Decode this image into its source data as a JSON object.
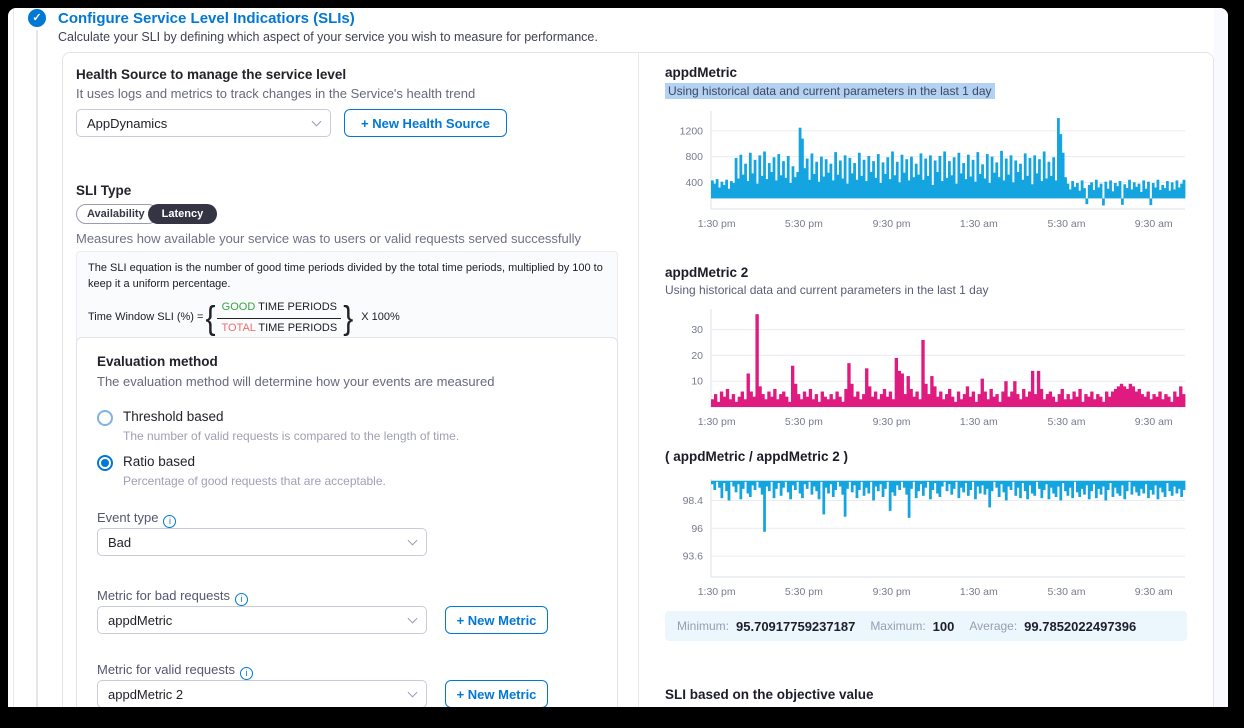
{
  "header": {
    "title": "Configure Service Level Indicatiors (SLIs)",
    "subtitle": "Calculate your SLI by defining which aspect of your service you wish to measure for performance.",
    "check_glyph": "✓"
  },
  "left": {
    "health_source": {
      "label": "Health Source to manage the service level",
      "desc": "It uses logs and metrics to track changes in the Service's health trend",
      "value": "AppDynamics",
      "new_button": "+ New Health Source"
    },
    "sli_type": {
      "label": "SLI Type",
      "tabs": [
        {
          "label": "Availability"
        },
        {
          "label": "Latency"
        }
      ],
      "selected": "Latency",
      "desc": "Measures how available your service was to users or valid requests served successfully"
    },
    "equation": {
      "line1": "The SLI equation is the number of good time periods divided by the total time periods, multiplied by 100 to keep it a uniform percentage.",
      "prefix": "Time Window SLI (%) =",
      "numerator_em": "GOOD",
      "numerator_rest": " TIME PERIODS",
      "denominator_em": "TOTAL",
      "denominator_rest": " TIME PERIODS",
      "suffix": "X 100%"
    },
    "evaluation": {
      "title": "Evaluation method",
      "desc": "The evaluation method will determine how your events are measured",
      "options": [
        {
          "label": "Threshold based",
          "desc": "The number of valid requests is compared to the length of time.",
          "selected": false
        },
        {
          "label": "Ratio based",
          "desc": "Percentage of good requests that are acceptable.",
          "selected": true
        }
      ],
      "event_type": {
        "label": "Event type",
        "value": "Bad"
      },
      "metric_bad": {
        "label": "Metric for bad requests",
        "value": "appdMetric",
        "button": "+ New Metric"
      },
      "metric_valid": {
        "label": "Metric for valid requests",
        "value": "appdMetric 2",
        "button": "+ New Metric"
      },
      "info_glyph": "i"
    }
  },
  "right": {
    "stats": {
      "min_label": "Minimum:",
      "min": "95.70917759237187",
      "max_label": "Maximum:",
      "max": "100",
      "avg_label": "Average:",
      "avg": "99.7852022497396"
    },
    "footer": "SLI based on the objective value"
  },
  "chart_data": [
    {
      "type": "area",
      "title": "appdMetric",
      "subtitle": "Using historical data and current parameters in the last 1 day",
      "subtitle_highlighted": true,
      "color": "#14a5e0",
      "ylim": [
        -15,
        1510
      ],
      "yticks": [
        400,
        800,
        1200
      ],
      "xlabels": [
        "1:30 pm",
        "5:30 pm",
        "9:30 pm",
        "1:30 am",
        "5:30 am",
        "9:30 am"
      ],
      "baseline": 150,
      "values": [
        430,
        380,
        450,
        320,
        410,
        360,
        440,
        300,
        420,
        390,
        780,
        460,
        830,
        520,
        690,
        420,
        860,
        540,
        750,
        380,
        820,
        500,
        880,
        450,
        700,
        560,
        790,
        430,
        840,
        510,
        730,
        470,
        810,
        390,
        650,
        480,
        560,
        1250,
        1080,
        620,
        770,
        440,
        850,
        530,
        720,
        410,
        800,
        490,
        760,
        550,
        690,
        430,
        870,
        520,
        740,
        460,
        820,
        380,
        780,
        540,
        700,
        440,
        860,
        500,
        750,
        420,
        810,
        560,
        730,
        470,
        840,
        390,
        710,
        530,
        790,
        450,
        880,
        510,
        720,
        400,
        830,
        550,
        760,
        430,
        800,
        480,
        690,
        520,
        850,
        440,
        770,
        500,
        820,
        360,
        740,
        560,
        810,
        420,
        880,
        470,
        730,
        510,
        790,
        380,
        860,
        540,
        700,
        450,
        830,
        490,
        750,
        410,
        870,
        530,
        680,
        460,
        840,
        390,
        800,
        550,
        710,
        480,
        890,
        430,
        770,
        520,
        820,
        400,
        740,
        560,
        690,
        440,
        850,
        500,
        780,
        370,
        820,
        540,
        760,
        420,
        880,
        460,
        720,
        500,
        790,
        430,
        1400,
        1150,
        860,
        480,
        380,
        290,
        420,
        330,
        390,
        270,
        430,
        310,
        60,
        360,
        400,
        280,
        440,
        320,
        380,
        40,
        410,
        300,
        430,
        260,
        390,
        340,
        420,
        50,
        370,
        310,
        440,
        290,
        400,
        330,
        380,
        250,
        430,
        300,
        410,
        45,
        390,
        320,
        440,
        280,
        360,
        310,
        420,
        270,
        400,
        290,
        430,
        320,
        380,
        440
      ]
    },
    {
      "type": "area",
      "title": "appdMetric 2",
      "subtitle": "Using historical data and current parameters in the last 1 day",
      "subtitle_highlighted": false,
      "color": "#e01b80",
      "ylim": [
        0,
        38
      ],
      "yticks": [
        10,
        20,
        30
      ],
      "xlabels": [
        "1:30 pm",
        "5:30 pm",
        "9:30 pm",
        "1:30 am",
        "5:30 am",
        "9:30 am"
      ],
      "baseline": 0,
      "values": [
        3,
        5,
        2,
        6,
        4,
        7,
        3,
        5,
        2,
        4,
        6,
        3,
        13,
        6,
        4,
        36,
        8,
        5,
        3,
        6,
        4,
        7,
        3,
        5,
        6,
        4,
        2,
        16,
        9,
        5,
        3,
        6,
        4,
        7,
        3,
        5,
        2,
        6,
        4,
        3,
        5,
        3,
        6,
        4,
        2,
        7,
        17,
        9,
        4,
        6,
        3,
        5,
        15,
        8,
        4,
        6,
        3,
        5,
        7,
        4,
        6,
        3,
        19,
        14,
        13,
        5,
        12,
        7,
        4,
        6,
        3,
        26,
        9,
        5,
        12,
        8,
        4,
        6,
        3,
        5,
        7,
        4,
        2,
        6,
        3,
        5,
        8,
        4,
        6,
        2,
        5,
        11,
        6,
        3,
        7,
        4,
        5,
        2,
        6,
        10,
        4,
        6,
        10,
        5,
        3,
        7,
        4,
        6,
        14,
        5,
        14,
        7,
        3,
        5,
        6,
        4,
        2,
        5,
        7,
        3,
        5,
        3,
        6,
        4,
        7,
        2,
        5,
        4,
        6,
        3,
        5,
        4,
        2,
        6,
        4,
        6,
        7,
        8,
        9,
        8,
        7,
        9,
        8,
        6,
        7,
        5,
        4,
        6,
        3,
        5,
        4,
        6,
        3,
        5,
        4,
        2,
        6,
        4,
        8,
        5
      ]
    },
    {
      "type": "area",
      "title": "( appdMetric / appdMetric 2 )",
      "subtitle": "",
      "subtitle_highlighted": false,
      "color": "#14a5e0",
      "ylim": [
        91.8,
        100.25
      ],
      "yticks": [
        93.6,
        96,
        98.4
      ],
      "xlabels": [
        "1:30 pm",
        "5:30 pm",
        "9:30 pm",
        "1:30 am",
        "5:30 am",
        "9:30 am"
      ],
      "baseline": 100.1,
      "values": [
        99.8,
        99.3,
        100,
        99.5,
        98.6,
        99.9,
        99.2,
        98.4,
        100,
        99.6,
        99.1,
        99.8,
        98.5,
        99.4,
        100,
        99.0,
        98.7,
        99.7,
        99.3,
        100,
        99.5,
        98.9,
        95.7,
        99.6,
        99.2,
        100,
        98.6,
        99.4,
        99.9,
        98.8,
        99.5,
        100,
        99.1,
        98.5,
        99.7,
        99.3,
        100,
        99.0,
        98.6,
        99.8,
        99.4,
        100,
        98.9,
        99.6,
        99.2,
        98.5,
        100,
        97.2,
        99.5,
        99.0,
        99.8,
        98.7,
        99.3,
        100,
        99.6,
        98.9,
        97.0,
        99.4,
        100,
        99.1,
        99.7,
        98.6,
        99.3,
        100,
        98.8,
        99.5,
        99.0,
        100,
        98.4,
        99.6,
        99.2,
        99.8,
        98.7,
        99.4,
        100,
        97.5,
        99.1,
        98.8,
        99.7,
        99.3,
        100,
        99.5,
        98.9,
        96.9,
        99.4,
        100,
        98.6,
        99.2,
        99.8,
        98.8,
        99.5,
        100,
        98.5,
        99.3,
        99.9,
        99.0,
        98.7,
        99.6,
        100,
        99.2,
        99.8,
        98.9,
        99.4,
        100,
        98.6,
        99.5,
        99.1,
        99.9,
        98.8,
        99.3,
        100,
        98.5,
        99.6,
        99.0,
        99.7,
        98.9,
        99.4,
        97.8,
        99.2,
        100,
        99.5,
        98.7,
        99.8,
        99.1,
        98.4,
        99.6,
        99.3,
        100,
        98.8,
        99.5,
        98.6,
        99.9,
        99.2,
        98.5,
        99.7,
        99.0,
        98.8,
        100,
        99.4,
        98.6,
        99.3,
        99.8,
        98.5,
        99.5,
        99.0,
        98.7,
        99.6,
        98.4,
        99.9,
        99.2,
        98.8,
        99.5,
        98.6,
        100,
        99.1,
        98.7,
        99.4,
        98.9,
        99.7,
        98.5,
        99.2,
        99.8,
        98.6,
        99.4,
        98.9,
        99.6,
        98.4,
        99.3,
        99.9,
        98.7,
        99.5,
        99.0,
        98.8,
        99.7,
        98.5,
        99.2,
        100,
        98.9,
        99.6,
        99.1,
        98.8,
        99.4,
        99.0,
        99.8,
        98.6,
        99.3,
        98.9,
        99.7,
        98.5,
        99.5,
        99.1,
        98.7,
        99.9,
        99.2,
        98.8,
        99.6,
        99.0,
        99.4,
        98.7,
        99.3
      ]
    }
  ]
}
